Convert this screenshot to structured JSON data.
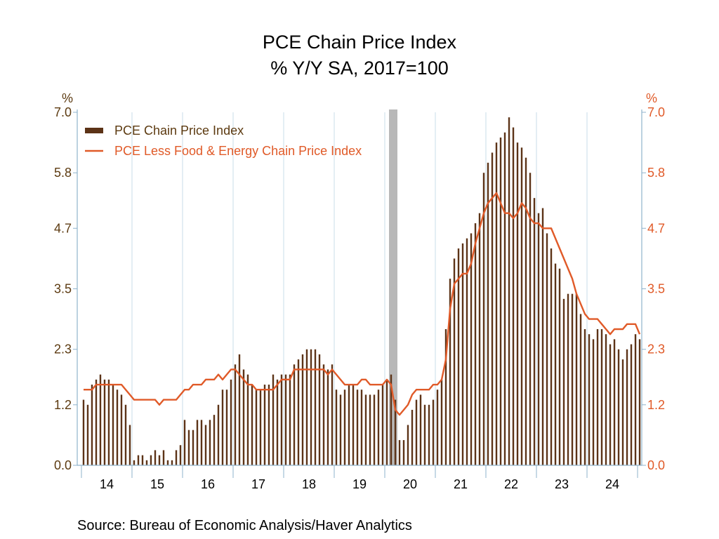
{
  "title": "PCE Chain Price Index",
  "subtitle": "% Y/Y   SA, 2017=100",
  "source": "Source:  Bureau of Economic Analysis/Haver Analytics",
  "colors": {
    "bars": "#5c3317",
    "line": "#e05a28",
    "left_axis": "#5c3a10",
    "right_axis": "#e05a28",
    "grid": "#c8dce8",
    "axis_line": "#8fb3cc",
    "recession": "#b8b8b8"
  },
  "chart_data": {
    "type": "bar",
    "left_axis_unit": "%",
    "right_axis_unit": "%",
    "ylim": [
      0.0,
      7.0
    ],
    "y_ticks": [
      "0.0",
      "1.2",
      "2.3",
      "3.5",
      "4.7",
      "5.8",
      "7.0"
    ],
    "x_range": [
      2013.917,
      2025.083
    ],
    "x_tick_labels": [
      "14",
      "15",
      "16",
      "17",
      "18",
      "19",
      "20",
      "21",
      "22",
      "23",
      "24"
    ],
    "legend_position": "top-left",
    "grid": "vertical year separators",
    "recession_shading": {
      "start": "2020-02",
      "end": "2020-04"
    },
    "start_month": "2014-01",
    "series": [
      {
        "name": "PCE Chain Price Index",
        "type": "bar",
        "values": [
          1.3,
          1.2,
          1.6,
          1.7,
          1.8,
          1.7,
          1.7,
          1.6,
          1.5,
          1.4,
          1.2,
          0.8,
          0.1,
          0.2,
          0.2,
          0.1,
          0.2,
          0.3,
          0.2,
          0.3,
          0.1,
          0.1,
          0.3,
          0.4,
          0.9,
          0.7,
          0.7,
          0.9,
          0.9,
          0.8,
          0.9,
          1.0,
          1.2,
          1.5,
          1.5,
          1.7,
          2.0,
          2.2,
          1.9,
          1.8,
          1.6,
          1.5,
          1.5,
          1.6,
          1.6,
          1.8,
          1.7,
          1.8,
          1.8,
          1.8,
          2.0,
          2.1,
          2.2,
          2.3,
          2.3,
          2.3,
          2.2,
          2.0,
          1.9,
          2.0,
          1.5,
          1.4,
          1.5,
          1.6,
          1.6,
          1.5,
          1.5,
          1.4,
          1.4,
          1.4,
          1.5,
          1.6,
          1.7,
          1.8,
          1.3,
          0.5,
          0.5,
          0.8,
          1.1,
          1.3,
          1.4,
          1.2,
          1.2,
          1.3,
          1.5,
          1.7,
          2.7,
          3.7,
          4.1,
          4.3,
          4.4,
          4.5,
          4.6,
          4.8,
          5.0,
          5.8,
          6.0,
          6.2,
          6.4,
          6.5,
          6.6,
          6.9,
          6.7,
          6.4,
          6.3,
          6.1,
          5.8,
          5.3,
          5.0,
          5.1,
          4.6,
          4.3,
          4.0,
          3.9,
          3.3,
          3.4,
          3.4,
          3.4,
          3.0,
          2.7,
          2.6,
          2.5,
          2.7,
          2.7,
          2.6,
          2.4,
          2.5,
          2.3,
          2.1,
          2.3,
          2.4,
          2.6,
          2.5
        ]
      },
      {
        "name": "PCE Less Food & Energy Chain Price Index",
        "type": "line",
        "values": [
          1.5,
          1.5,
          1.5,
          1.6,
          1.6,
          1.6,
          1.6,
          1.6,
          1.6,
          1.6,
          1.5,
          1.4,
          1.3,
          1.3,
          1.3,
          1.3,
          1.3,
          1.3,
          1.2,
          1.3,
          1.3,
          1.3,
          1.3,
          1.4,
          1.5,
          1.5,
          1.6,
          1.6,
          1.6,
          1.7,
          1.7,
          1.7,
          1.8,
          1.7,
          1.8,
          1.9,
          1.9,
          1.8,
          1.7,
          1.6,
          1.6,
          1.5,
          1.5,
          1.5,
          1.5,
          1.5,
          1.6,
          1.7,
          1.7,
          1.7,
          1.9,
          1.9,
          1.9,
          1.9,
          1.9,
          1.9,
          1.9,
          1.9,
          1.8,
          1.9,
          1.8,
          1.7,
          1.6,
          1.6,
          1.6,
          1.6,
          1.7,
          1.7,
          1.6,
          1.6,
          1.6,
          1.6,
          1.7,
          1.6,
          1.1,
          1.0,
          1.1,
          1.2,
          1.4,
          1.5,
          1.5,
          1.5,
          1.5,
          1.6,
          1.6,
          1.7,
          2.1,
          3.1,
          3.6,
          3.7,
          3.8,
          3.8,
          4.0,
          4.4,
          4.7,
          5.0,
          5.2,
          5.3,
          5.4,
          5.2,
          5.0,
          5.0,
          4.9,
          5.0,
          5.2,
          5.1,
          4.9,
          4.8,
          4.8,
          4.7,
          4.7,
          4.7,
          4.5,
          4.3,
          4.1,
          3.9,
          3.7,
          3.4,
          3.2,
          3.0,
          2.9,
          2.9,
          2.9,
          2.8,
          2.7,
          2.6,
          2.7,
          2.7,
          2.7,
          2.8,
          2.8,
          2.8,
          2.6
        ]
      }
    ]
  }
}
